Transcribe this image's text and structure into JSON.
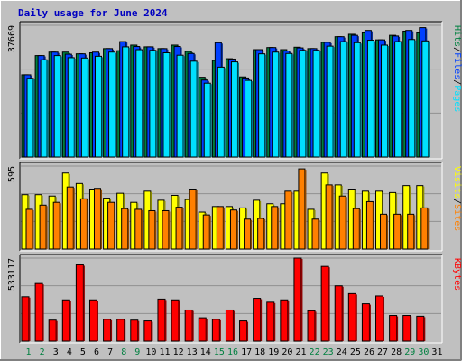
{
  "title": "Daily usage for June 2024",
  "colors": {
    "frame_bg": "#c0c0c0",
    "plot_bg": "#c0c0c0",
    "title": "#0000c0",
    "hits": "#008040",
    "files": "#0040ff",
    "pages": "#00e0ff",
    "visits": "#ffff00",
    "sites": "#ff8000",
    "kbytes": "#ff0000",
    "weekday_label": "#000000",
    "weekend_label": "#008040"
  },
  "chart_data": [
    {
      "type": "bar",
      "panel": "hits-files-pages",
      "categories": [
        "1",
        "2",
        "3",
        "4",
        "5",
        "6",
        "7",
        "8",
        "9",
        "10",
        "11",
        "12",
        "13",
        "14",
        "15",
        "16",
        "17",
        "18",
        "19",
        "20",
        "21",
        "22",
        "23",
        "24",
        "25",
        "26",
        "27",
        "28",
        "29",
        "30",
        "31"
      ],
      "y_max_label": "37669",
      "ylim": [
        0,
        37669
      ],
      "legend": [
        {
          "name": "Pages",
          "color": "#00e0ff"
        },
        {
          "name": "Files",
          "color": "#0040ff"
        },
        {
          "name": "Hits",
          "color": "#008040"
        }
      ],
      "series": [
        {
          "name": "Hits",
          "values": [
            23500,
            29000,
            30000,
            30000,
            29500,
            29800,
            31000,
            30400,
            32000,
            31500,
            31000,
            32000,
            30200,
            22800,
            27600,
            28100,
            22900,
            30700,
            31300,
            30700,
            31400,
            31000,
            32800,
            34400,
            35100,
            35500,
            33500,
            34800,
            36000,
            35500,
            0
          ]
        },
        {
          "name": "Files",
          "values": [
            23500,
            29000,
            30000,
            29400,
            29500,
            30000,
            31000,
            33000,
            31600,
            31500,
            31000,
            31600,
            29600,
            22000,
            32700,
            28000,
            22600,
            30700,
            31300,
            30300,
            31200,
            31000,
            32800,
            34400,
            34800,
            36200,
            33500,
            34600,
            36200,
            37000,
            0
          ]
        },
        {
          "name": "Pages",
          "values": [
            22500,
            27800,
            29000,
            28400,
            28300,
            28800,
            30000,
            31500,
            30700,
            30500,
            29800,
            29100,
            27400,
            21100,
            25700,
            27200,
            21900,
            29500,
            30000,
            29600,
            30500,
            30500,
            31700,
            33000,
            32700,
            33400,
            32000,
            33000,
            33600,
            33200,
            0
          ]
        }
      ]
    },
    {
      "type": "bar",
      "panel": "visits-sites",
      "categories": [
        "1",
        "2",
        "3",
        "4",
        "5",
        "6",
        "7",
        "8",
        "9",
        "10",
        "11",
        "12",
        "13",
        "14",
        "15",
        "16",
        "17",
        "18",
        "19",
        "20",
        "21",
        "22",
        "23",
        "24",
        "25",
        "26",
        "27",
        "28",
        "29",
        "30",
        "31"
      ],
      "y_max_label": "595",
      "ylim": [
        0,
        595
      ],
      "legend": [
        {
          "name": "Sites",
          "color": "#ff8000"
        },
        {
          "name": "Visits",
          "color": "#ffff00"
        }
      ],
      "series": [
        {
          "name": "Visits",
          "values": [
            390,
            390,
            380,
            545,
            470,
            430,
            365,
            400,
            335,
            415,
            350,
            385,
            355,
            265,
            305,
            305,
            295,
            350,
            325,
            325,
            415,
            285,
            545,
            460,
            430,
            415,
            415,
            405,
            455,
            455,
            0
          ]
        },
        {
          "name": "Sites",
          "values": [
            285,
            315,
            335,
            445,
            360,
            435,
            335,
            290,
            285,
            275,
            275,
            300,
            430,
            245,
            305,
            280,
            215,
            220,
            305,
            415,
            575,
            215,
            460,
            380,
            290,
            340,
            250,
            250,
            250,
            295,
            0
          ]
        }
      ]
    },
    {
      "type": "bar",
      "panel": "kbytes",
      "categories": [
        "1",
        "2",
        "3",
        "4",
        "5",
        "6",
        "7",
        "8",
        "9",
        "10",
        "11",
        "12",
        "13",
        "14",
        "15",
        "16",
        "17",
        "18",
        "19",
        "20",
        "21",
        "22",
        "23",
        "24",
        "25",
        "26",
        "27",
        "28",
        "29",
        "30",
        "31"
      ],
      "y_max_label": "533117",
      "ylim": [
        0,
        533117
      ],
      "legend": [
        {
          "name": "KBytes",
          "color": "#ff0000"
        }
      ],
      "series": [
        {
          "name": "KBytes",
          "values": [
            285000,
            370000,
            135000,
            265000,
            490000,
            265000,
            140000,
            140000,
            135000,
            130000,
            270000,
            265000,
            200000,
            150000,
            140000,
            200000,
            130000,
            275000,
            250000,
            265000,
            533117,
            195000,
            480000,
            355000,
            305000,
            240000,
            290000,
            165000,
            165000,
            160000,
            0
          ]
        }
      ]
    }
  ],
  "x_axis": {
    "weekend_days": [
      "1",
      "2",
      "8",
      "9",
      "15",
      "16",
      "22",
      "23",
      "29",
      "30"
    ]
  }
}
